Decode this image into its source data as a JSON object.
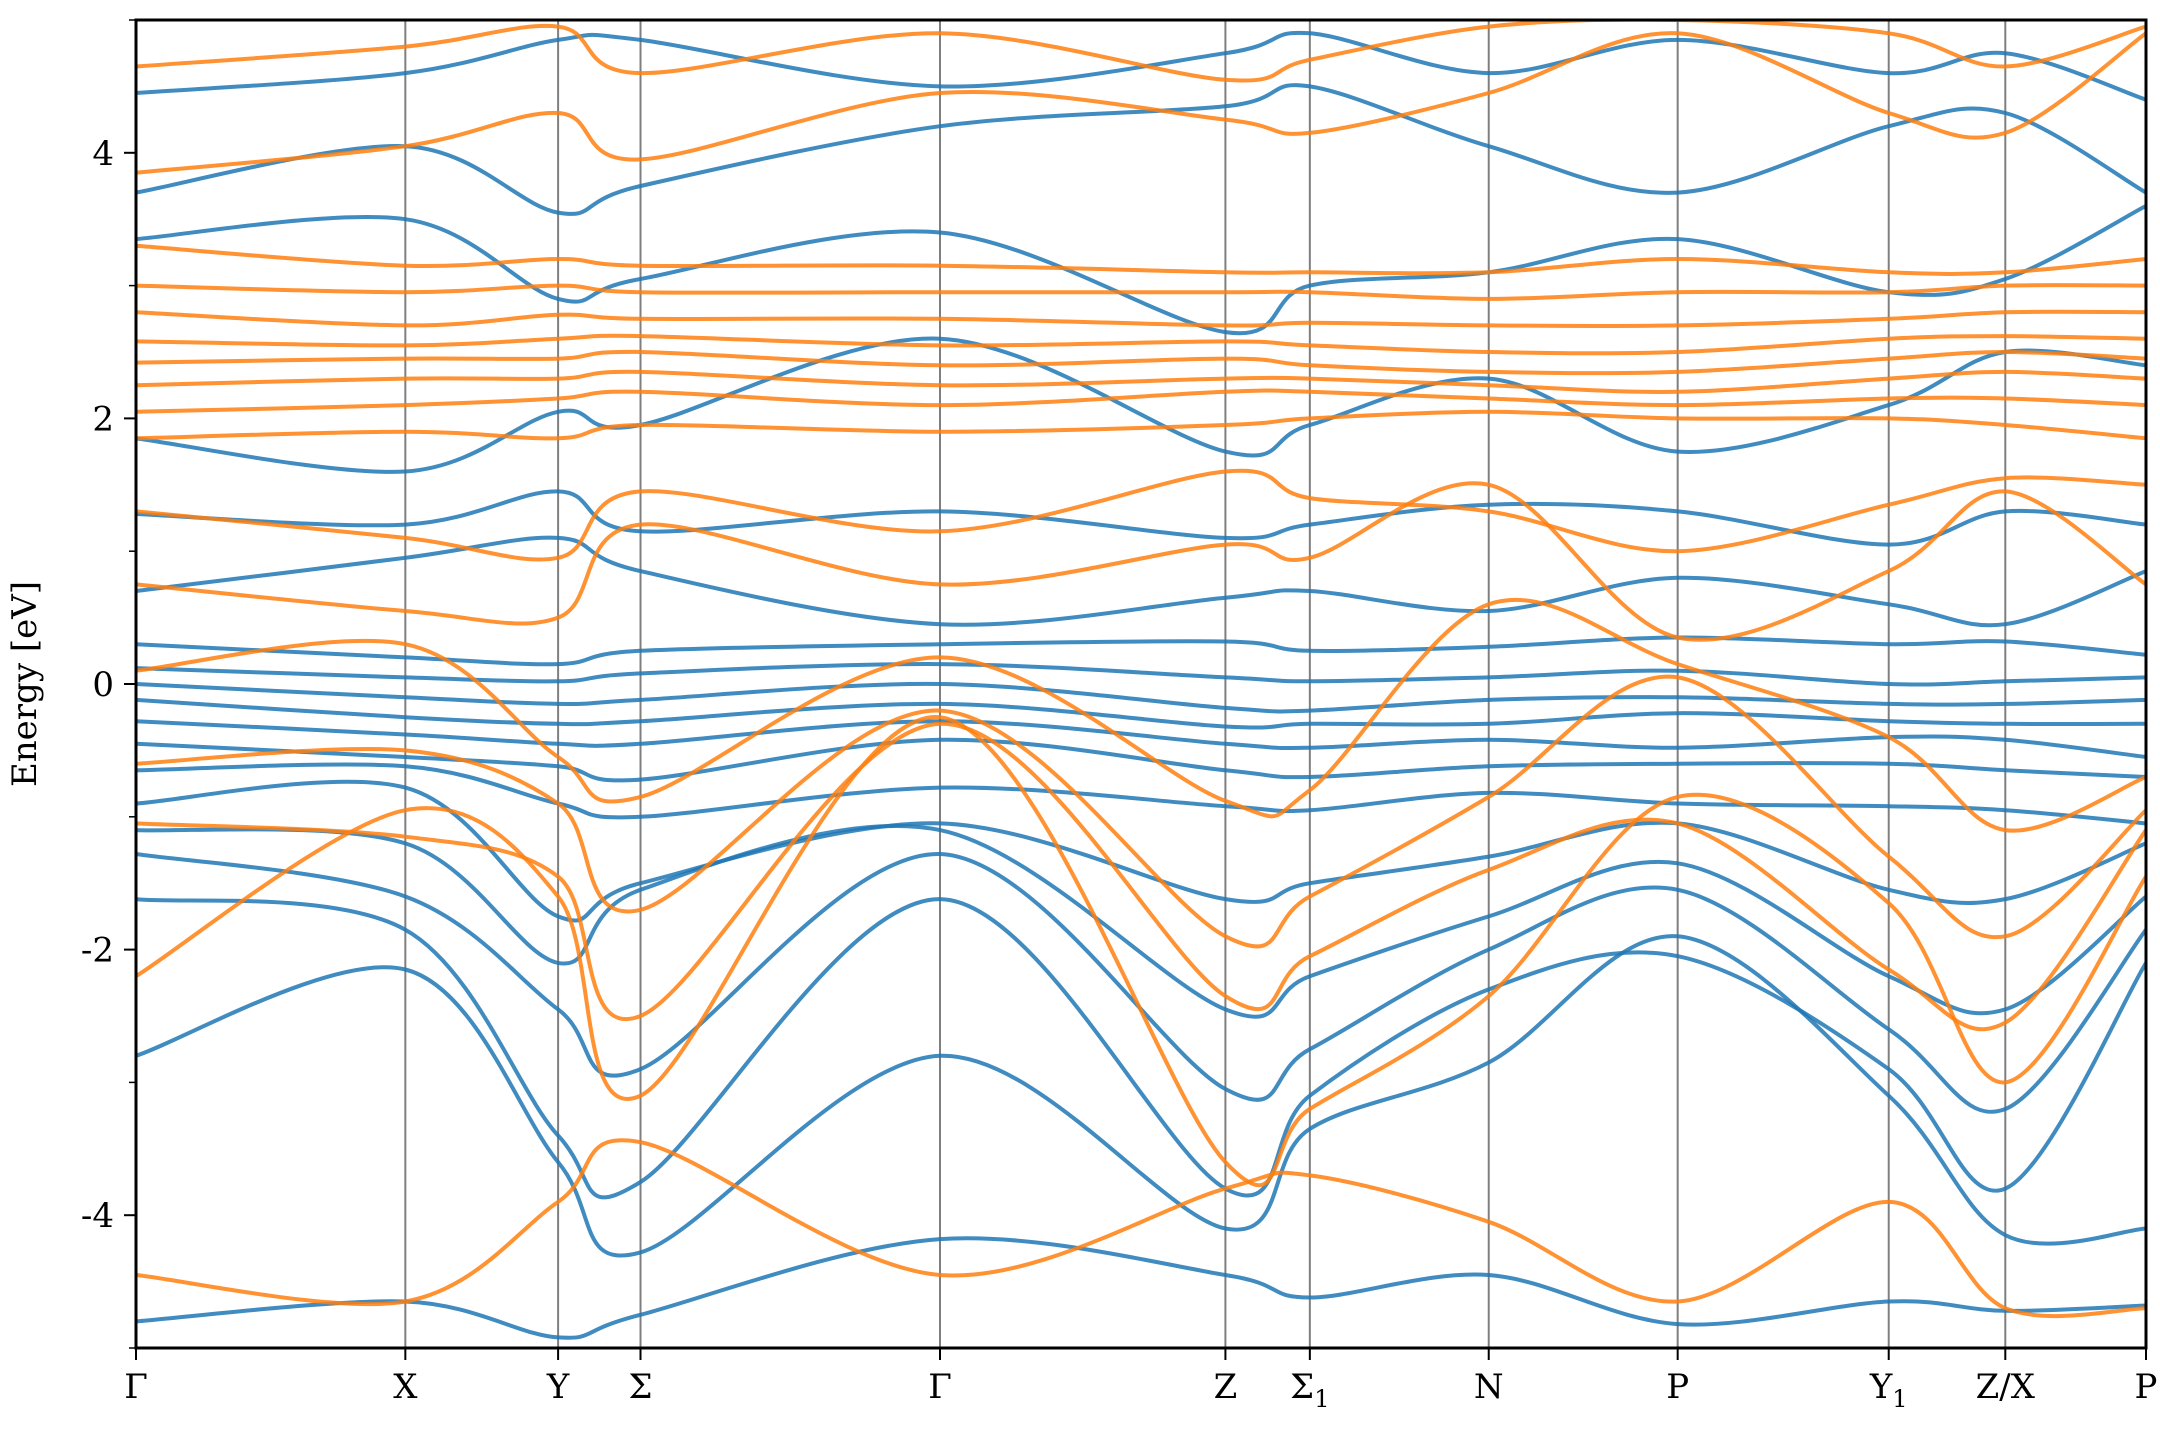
{
  "chart_data": {
    "type": "line",
    "title": "",
    "xlabel": "",
    "ylabel": "Energy [eV]",
    "ylim": [
      -5,
      5
    ],
    "grid": false,
    "legend": "none",
    "yticks": [
      {
        "value": -4,
        "label": "-4"
      },
      {
        "value": -2,
        "label": "-2"
      },
      {
        "value": 0,
        "label": "0"
      },
      {
        "value": 2,
        "label": "2"
      },
      {
        "value": 4,
        "label": "4"
      }
    ],
    "yminor_ticks": [
      -5,
      -3,
      -1,
      1,
      3,
      5
    ],
    "kpath_total": 100,
    "kpoints": [
      {
        "label": "Γ",
        "sub": "",
        "x": 0
      },
      {
        "label": "X",
        "sub": "",
        "x": 13.4
      },
      {
        "label": "Y",
        "sub": "",
        "x": 21.0
      },
      {
        "label": "Σ",
        "sub": "",
        "x": 25.1
      },
      {
        "label": "Γ",
        "sub": "",
        "x": 40.0
      },
      {
        "label": "Z",
        "sub": "",
        "x": 54.2
      },
      {
        "label": "Σ",
        "sub": "1",
        "x": 58.4
      },
      {
        "label": "N",
        "sub": "",
        "x": 67.3
      },
      {
        "label": "P",
        "sub": "",
        "x": 76.7
      },
      {
        "label": "Y",
        "sub": "1",
        "x": 87.2
      },
      {
        "label": "Z/X",
        "sub": "",
        "x": 93.0
      },
      {
        "label": "P",
        "sub": "",
        "x": 100
      }
    ],
    "series_colors": {
      "spin_up": "#1f77b4",
      "spin_down": "#ff7f0e"
    },
    "series": [
      {
        "color_key": "spin_up",
        "values": [
          -4.8,
          -4.65,
          -4.92,
          -4.75,
          -4.18,
          -4.45,
          -4.62,
          -4.45,
          -4.82,
          -4.65,
          -4.72,
          -4.68
        ]
      },
      {
        "color_key": "spin_up",
        "values": [
          -2.8,
          -2.15,
          -3.6,
          -4.28,
          -2.8,
          -4.1,
          -3.35,
          -2.85,
          -1.9,
          -3.1,
          -4.15,
          -4.1
        ]
      },
      {
        "color_key": "spin_up",
        "values": [
          -1.62,
          -1.85,
          -3.4,
          -3.75,
          -1.62,
          -3.8,
          -3.1,
          -2.3,
          -2.05,
          -2.9,
          -3.8,
          -2.1
        ]
      },
      {
        "color_key": "spin_up",
        "values": [
          -1.28,
          -1.6,
          -2.45,
          -2.9,
          -1.28,
          -3.05,
          -2.75,
          -2.0,
          -1.55,
          -2.6,
          -3.2,
          -1.85
        ]
      },
      {
        "color_key": "spin_up",
        "values": [
          -1.1,
          -1.2,
          -2.1,
          -1.55,
          -1.1,
          -2.45,
          -2.2,
          -1.75,
          -1.35,
          -2.2,
          -2.45,
          -1.6
        ]
      },
      {
        "color_key": "spin_up",
        "values": [
          -0.9,
          -0.78,
          -1.75,
          -1.5,
          -1.05,
          -1.62,
          -1.5,
          -1.3,
          -1.05,
          -1.55,
          -1.62,
          -1.2
        ]
      },
      {
        "color_key": "spin_up",
        "values": [
          -0.65,
          -0.62,
          -0.9,
          -1.0,
          -0.78,
          -0.92,
          -0.95,
          -0.82,
          -0.9,
          -0.92,
          -0.95,
          -1.05
        ]
      },
      {
        "color_key": "spin_up",
        "values": [
          -0.45,
          -0.55,
          -0.62,
          -0.72,
          -0.42,
          -0.65,
          -0.7,
          -0.62,
          -0.6,
          -0.6,
          -0.65,
          -0.7
        ]
      },
      {
        "color_key": "spin_up",
        "values": [
          -0.28,
          -0.38,
          -0.45,
          -0.45,
          -0.28,
          -0.45,
          -0.48,
          -0.42,
          -0.48,
          -0.4,
          -0.42,
          -0.55
        ]
      },
      {
        "color_key": "spin_up",
        "values": [
          -0.12,
          -0.25,
          -0.3,
          -0.28,
          -0.15,
          -0.32,
          -0.3,
          -0.3,
          -0.22,
          -0.28,
          -0.3,
          -0.3
        ]
      },
      {
        "color_key": "spin_up",
        "values": [
          0.0,
          -0.1,
          -0.15,
          -0.12,
          0.0,
          -0.18,
          -0.2,
          -0.12,
          -0.1,
          -0.15,
          -0.15,
          -0.12
        ]
      },
      {
        "color_key": "spin_up",
        "values": [
          0.12,
          0.05,
          0.02,
          0.08,
          0.15,
          0.05,
          0.02,
          0.05,
          0.1,
          0.0,
          0.02,
          0.05
        ]
      },
      {
        "color_key": "spin_up",
        "values": [
          0.3,
          0.2,
          0.15,
          0.25,
          0.3,
          0.32,
          0.25,
          0.28,
          0.35,
          0.3,
          0.32,
          0.22
        ]
      },
      {
        "color_key": "spin_up",
        "values": [
          0.7,
          0.95,
          1.1,
          0.85,
          0.45,
          0.65,
          0.7,
          0.55,
          0.8,
          0.6,
          0.45,
          0.85
        ]
      },
      {
        "color_key": "spin_up",
        "values": [
          1.28,
          1.2,
          1.45,
          1.15,
          1.3,
          1.1,
          1.2,
          1.35,
          1.3,
          1.05,
          1.3,
          1.2
        ]
      },
      {
        "color_key": "spin_up",
        "values": [
          1.85,
          1.6,
          2.05,
          1.95,
          2.6,
          1.75,
          1.95,
          2.3,
          1.75,
          2.1,
          2.5,
          2.4
        ]
      },
      {
        "color_key": "spin_up",
        "values": [
          3.35,
          3.5,
          2.9,
          3.05,
          3.4,
          2.65,
          3.0,
          3.1,
          3.35,
          2.95,
          3.05,
          3.6
        ]
      },
      {
        "color_key": "spin_up",
        "values": [
          3.7,
          4.05,
          3.55,
          3.75,
          4.2,
          4.35,
          4.5,
          4.05,
          3.7,
          4.2,
          4.3,
          3.7
        ]
      },
      {
        "color_key": "spin_up",
        "values": [
          4.45,
          4.6,
          4.85,
          4.85,
          4.5,
          4.75,
          4.9,
          4.6,
          4.85,
          4.6,
          4.75,
          4.4
        ]
      },
      {
        "color_key": "spin_down",
        "values": [
          -4.45,
          -4.65,
          -3.9,
          -3.45,
          -4.45,
          -3.8,
          -3.7,
          -4.05,
          -4.65,
          -3.9,
          -4.7,
          -4.7
        ]
      },
      {
        "color_key": "spin_down",
        "values": [
          -2.2,
          -0.95,
          -1.6,
          -3.1,
          -0.25,
          -3.6,
          -3.2,
          -2.35,
          -0.85,
          -1.65,
          -3.0,
          -1.45
        ]
      },
      {
        "color_key": "spin_down",
        "values": [
          -1.05,
          -1.15,
          -1.45,
          -2.5,
          -0.3,
          -2.35,
          -2.05,
          -1.4,
          -1.05,
          -2.15,
          -2.55,
          -1.1
        ]
      },
      {
        "color_key": "spin_down",
        "values": [
          -0.6,
          -0.5,
          -0.9,
          -1.7,
          -0.2,
          -1.9,
          -1.6,
          -0.85,
          0.05,
          -1.3,
          -1.9,
          -0.95
        ]
      },
      {
        "color_key": "spin_down",
        "values": [
          0.1,
          0.3,
          -0.55,
          -0.85,
          0.2,
          -0.88,
          -0.8,
          0.6,
          0.15,
          -0.4,
          -1.1,
          -0.7
        ]
      },
      {
        "color_key": "spin_down",
        "values": [
          0.75,
          0.55,
          0.5,
          1.2,
          0.75,
          1.05,
          0.95,
          1.5,
          0.35,
          0.85,
          1.45,
          0.75
        ]
      },
      {
        "color_key": "spin_down",
        "values": [
          1.3,
          1.1,
          0.95,
          1.45,
          1.15,
          1.6,
          1.4,
          1.3,
          1.0,
          1.35,
          1.55,
          1.5
        ]
      },
      {
        "color_key": "spin_down",
        "values": [
          1.85,
          1.9,
          1.85,
          1.95,
          1.9,
          1.95,
          2.0,
          2.05,
          2.0,
          2.0,
          1.95,
          1.85
        ]
      },
      {
        "color_key": "spin_down",
        "values": [
          2.05,
          2.1,
          2.15,
          2.2,
          2.1,
          2.2,
          2.2,
          2.15,
          2.1,
          2.15,
          2.15,
          2.1
        ]
      },
      {
        "color_key": "spin_down",
        "values": [
          2.25,
          2.3,
          2.3,
          2.35,
          2.25,
          2.3,
          2.3,
          2.25,
          2.2,
          2.3,
          2.35,
          2.3
        ]
      },
      {
        "color_key": "spin_down",
        "values": [
          2.42,
          2.45,
          2.45,
          2.5,
          2.4,
          2.45,
          2.4,
          2.35,
          2.35,
          2.45,
          2.5,
          2.45
        ]
      },
      {
        "color_key": "spin_down",
        "values": [
          2.58,
          2.55,
          2.6,
          2.62,
          2.55,
          2.58,
          2.55,
          2.5,
          2.5,
          2.6,
          2.62,
          2.6
        ]
      },
      {
        "color_key": "spin_down",
        "values": [
          2.8,
          2.7,
          2.78,
          2.75,
          2.75,
          2.7,
          2.72,
          2.7,
          2.7,
          2.75,
          2.8,
          2.8
        ]
      },
      {
        "color_key": "spin_down",
        "values": [
          3.0,
          2.95,
          3.0,
          2.95,
          2.95,
          2.95,
          2.95,
          2.9,
          2.95,
          2.95,
          3.0,
          3.0
        ]
      },
      {
        "color_key": "spin_down",
        "values": [
          3.3,
          3.15,
          3.2,
          3.15,
          3.15,
          3.1,
          3.1,
          3.1,
          3.2,
          3.1,
          3.1,
          3.2
        ]
      },
      {
        "color_key": "spin_down",
        "values": [
          3.85,
          4.05,
          4.3,
          3.95,
          4.45,
          4.25,
          4.15,
          4.45,
          4.9,
          4.3,
          4.15,
          4.9
        ]
      },
      {
        "color_key": "spin_down",
        "values": [
          4.65,
          4.8,
          4.95,
          4.6,
          4.9,
          4.55,
          4.7,
          4.95,
          5.0,
          4.9,
          4.65,
          4.95
        ]
      }
    ]
  }
}
